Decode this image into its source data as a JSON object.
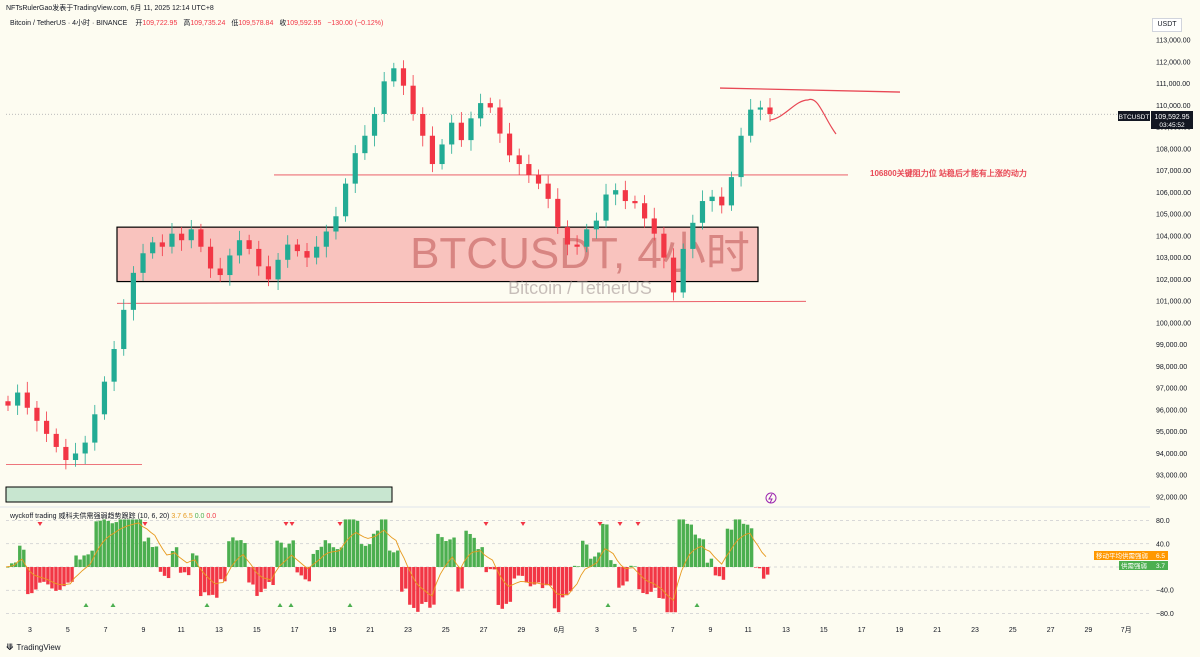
{
  "header": {
    "caption": "NFTsRulerGao发表于TradingView.com, 6月 11, 2025 12:14 UTC+8",
    "symbol": "Bitcoin / TetherUS · 4小时 · BINANCE",
    "open_label": "开",
    "open": "109,722.95",
    "high_label": "高",
    "high": "109,735.24",
    "low_label": "低",
    "low": "109,578.84",
    "close_label": "收",
    "close": "109,592.95",
    "change": "−130.00 (−0.12%)",
    "currency": "USDT"
  },
  "watermark": {
    "title": "BTCUSDT, 4小时",
    "subtitle": "Bitcoin / TetherUS"
  },
  "annotation": "106800关键阻力位 站稳后才能有上涨的动力",
  "price_tag": {
    "symbol": "BTCUSDT",
    "price": "109,592.95",
    "countdown": "03:45:52"
  },
  "indicator": {
    "name": "wyckoff trading 威科夫供需强弱趋势跟踪 (10, 6, 20)",
    "v1": "3.7",
    "v2": "6.5",
    "v3": "0.0",
    "v4": "0.0",
    "ma_tag_label": "移动平均供需强弱",
    "ma_tag_value": "6.5",
    "sd_tag_label": "供需强弱",
    "sd_tag_value": "3.7",
    "axis_labels": [
      "80.0",
      "40.0",
      "0.0",
      "−40.0",
      "−80.0"
    ]
  },
  "footer": {
    "brand": "TradingView"
  },
  "colors": {
    "up": "#22ab94",
    "down": "#f23645",
    "zone_fill": "#f8b9b5",
    "green_box": "#c8e6d0",
    "red_line": "#e84855",
    "background": "#fdfcf1"
  },
  "chart_data": {
    "type": "candlestick",
    "y_axis_labels": [
      "113,000.00",
      "112,000.00",
      "111,000.00",
      "110,000.00",
      "109,000.00",
      "108,000.00",
      "107,000.00",
      "106,000.00",
      "105,000.00",
      "104,000.00",
      "103,000.00",
      "102,000.00",
      "101,000.00",
      "100,000.00",
      "99,000.00",
      "98,000.00",
      "97,000.00",
      "96,000.00",
      "95,000.00",
      "94,000.00",
      "93,000.00",
      "92,000.00"
    ],
    "ylim": [
      91700,
      113500
    ],
    "x_axis_labels": [
      "3",
      "5",
      "7",
      "9",
      "11",
      "13",
      "15",
      "17",
      "19",
      "21",
      "23",
      "25",
      "27",
      "29",
      "6月",
      "3",
      "5",
      "7",
      "9",
      "11",
      "13",
      "15",
      "17",
      "19",
      "21",
      "23",
      "25",
      "27",
      "29",
      "7月"
    ],
    "key_levels": {
      "resistance_top": 110700,
      "resistance": 106800,
      "zone_top": 104400,
      "zone_bottom": 101900,
      "support": 100900,
      "low_line": 93500
    },
    "close_prices": [
      96200,
      96800,
      96100,
      95500,
      94900,
      94300,
      93700,
      94000,
      94500,
      95800,
      97300,
      98800,
      100600,
      102300,
      103200,
      103700,
      103500,
      104100,
      103800,
      104300,
      103500,
      102500,
      102200,
      103100,
      103800,
      103400,
      102600,
      102000,
      102900,
      103600,
      103300,
      103000,
      103500,
      104200,
      104900,
      106400,
      107800,
      108600,
      109600,
      111100,
      111700,
      110900,
      109600,
      108600,
      107300,
      108200,
      109200,
      108400,
      109400,
      110100,
      109900,
      108700,
      107700,
      107300,
      106800,
      106400,
      105700,
      104400,
      103600,
      103500,
      104300,
      104700,
      105900,
      106100,
      105600,
      105500,
      104800,
      104100,
      103000,
      101400,
      103400,
      104600,
      105600,
      105800,
      105400,
      106700,
      108600,
      109800,
      109900,
      109600
    ]
  }
}
